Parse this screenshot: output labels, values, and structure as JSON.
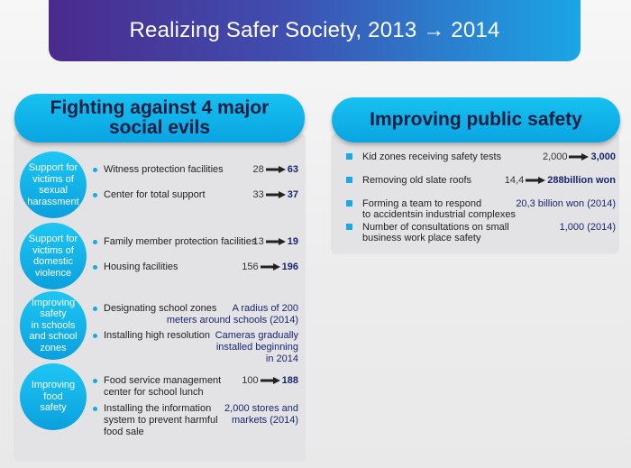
{
  "banner": {
    "title": "Realizing Safer Society, 2013 → 2014"
  },
  "left_panel": {
    "title_line1": "Fighting against 4 major",
    "title_line2": "social evils",
    "groups": [
      {
        "label": [
          "Support for",
          "victims of",
          "sexual",
          "harassment"
        ],
        "items": [
          {
            "text": [
              "Witness protection facilities"
            ],
            "from": "28",
            "to": "63"
          },
          {
            "text": [
              "Center for total support"
            ],
            "from": "33",
            "to": "37"
          }
        ]
      },
      {
        "label": [
          "Support for",
          "victims of",
          "domestic",
          "violence"
        ],
        "items": [
          {
            "text": [
              "Family member protection facilities"
            ],
            "from": "13",
            "to": "19"
          },
          {
            "text": [
              "Housing facilities"
            ],
            "from": "156",
            "to": "196"
          }
        ]
      },
      {
        "label": [
          "Improving",
          "safety",
          "in schools",
          "and school",
          "zones"
        ],
        "items": [
          {
            "text": [
              "Designating school zones"
            ],
            "note": [
              "A radius of 200",
              "meters around schools (2014)"
            ]
          },
          {
            "text": [
              "Installing high resolution"
            ],
            "note": [
              "Cameras gradually",
              "installed beginning",
              "in 2014"
            ]
          }
        ]
      },
      {
        "label": [
          "Improving",
          "food",
          "safety"
        ],
        "items": [
          {
            "text": [
              "Food service management",
              "center for school lunch"
            ],
            "from": "100",
            "to": "188"
          },
          {
            "text": [
              "Installing the information",
              "system to prevent harmful",
              "food sale"
            ],
            "note": [
              "2,000 stores and",
              "markets (2014)"
            ]
          }
        ]
      }
    ]
  },
  "right_panel": {
    "title": "Improving public safety",
    "items": [
      {
        "text": [
          "Kid zones receiving safety tests"
        ],
        "from": "2,000",
        "to": "3,000"
      },
      {
        "text": [
          "Removing old slate roofs"
        ],
        "from": "14,4",
        "to": "288billion won"
      },
      {
        "text": [
          "Forming a team to respond",
          "to accidentsin industrial complexes"
        ],
        "note": [
          "20,3 billion won (2014)"
        ]
      },
      {
        "text": [
          "Number of consultations on small",
          "business work place safety"
        ],
        "note": [
          "1,000 (2014)"
        ]
      }
    ]
  },
  "colors": {
    "accent": "#19a9e4",
    "banner_start": "#4a2a8c",
    "banner_end": "#1aa6e6",
    "value_text": "#1a2570"
  }
}
